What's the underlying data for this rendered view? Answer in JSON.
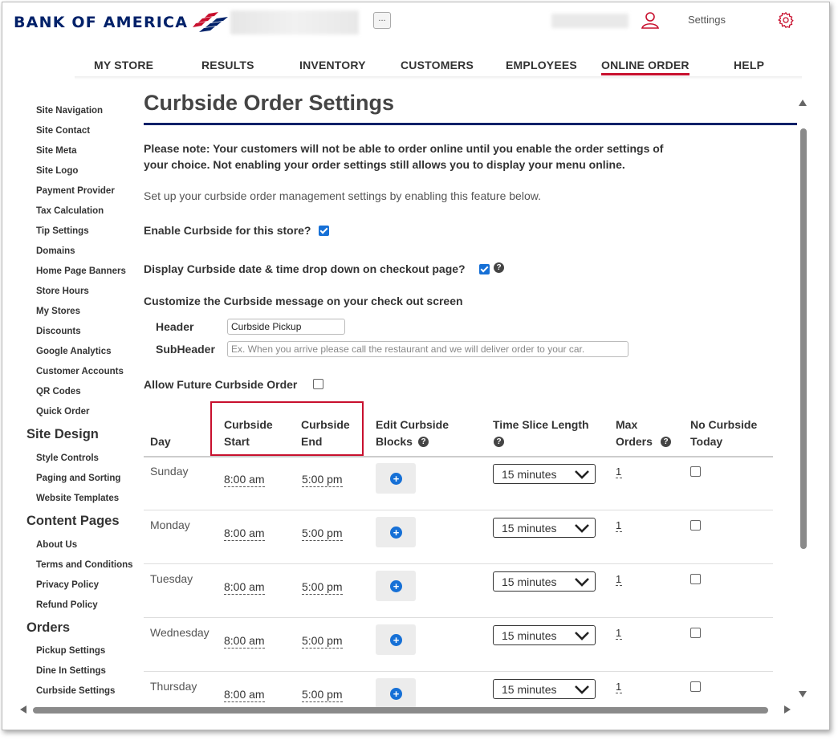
{
  "header": {
    "logo_text": "BANK OF AMERICA",
    "store_button": "...",
    "settings_label": "Settings"
  },
  "nav": {
    "items": [
      "MY STORE",
      "RESULTS",
      "INVENTORY",
      "CUSTOMERS",
      "EMPLOYEES",
      "ONLINE ORDER",
      "HELP"
    ],
    "active": "ONLINE ORDER"
  },
  "sidebar": {
    "site_items": [
      "Site Navigation",
      "Site Contact",
      "Site Meta",
      "Site Logo",
      "Payment Provider",
      "Tax Calculation",
      "Tip Settings",
      "Domains",
      "Home Page Banners",
      "Store Hours",
      "My Stores",
      "Discounts",
      "Google Analytics",
      "Customer Accounts",
      "QR Codes",
      "Quick Order"
    ],
    "site_design_heading": "Site Design",
    "site_design_items": [
      "Style Controls",
      "Paging and Sorting",
      "Website Templates"
    ],
    "content_pages_heading": "Content Pages",
    "content_pages_items": [
      "About Us",
      "Terms and Conditions",
      "Privacy Policy",
      "Refund Policy"
    ],
    "orders_heading": "Orders",
    "orders_items": [
      "Pickup Settings",
      "Dine In Settings",
      "Curbside Settings"
    ]
  },
  "main": {
    "title": "Curbside Order Settings",
    "note": "Please note: Your customers will not be able to order online until you enable the order settings of your choice. Not enabling your order settings still allows you to display your menu online.",
    "intro": "Set up your curbside order management settings by enabling this feature below.",
    "enable_label": "Enable Curbside for this store?",
    "enable_checked": true,
    "dropdown_label": "Display Curbside date & time drop down on checkout page?",
    "dropdown_checked": true,
    "help_glyph": "?",
    "customize_label": "Customize the Curbside message on your check out screen",
    "header_label": "Header",
    "header_value": "Curbside Pickup",
    "subheader_label": "SubHeader",
    "subheader_placeholder": "Ex. When you arrive please call the restaurant and we will deliver order to your car.",
    "future_label": "Allow Future Curbside Order",
    "future_checked": false
  },
  "table": {
    "headers": {
      "day": "Day",
      "start_1": "Curbside",
      "start_2": "Start",
      "end_1": "Curbside",
      "end_2": "End",
      "edit_1": "Edit Curbside",
      "edit_2": "Blocks",
      "slice_1": "Time Slice Length",
      "max_1": "Max",
      "max_2": "Orders",
      "nocurb_1": "No Curbside",
      "nocurb_2": "Today"
    },
    "rows": [
      {
        "day": "Sunday",
        "start": "8:00 am",
        "end": "5:00 pm",
        "slice": "15 minutes",
        "max": "1",
        "no_curbside": false
      },
      {
        "day": "Monday",
        "start": "8:00 am",
        "end": "5:00 pm",
        "slice": "15 minutes",
        "max": "1",
        "no_curbside": false
      },
      {
        "day": "Tuesday",
        "start": "8:00 am",
        "end": "5:00 pm",
        "slice": "15 minutes",
        "max": "1",
        "no_curbside": false
      },
      {
        "day": "Wednesday",
        "start": "8:00 am",
        "end": "5:00 pm",
        "slice": "15 minutes",
        "max": "1",
        "no_curbside": false
      },
      {
        "day": "Thursday",
        "start": "8:00 am",
        "end": "5:00 pm",
        "slice": "15 minutes",
        "max": "1",
        "no_curbside": false
      }
    ],
    "add_glyph": "+"
  },
  "colors": {
    "brand_navy": "#012169",
    "brand_red": "#c8102e",
    "accent_blue": "#1670d6"
  }
}
